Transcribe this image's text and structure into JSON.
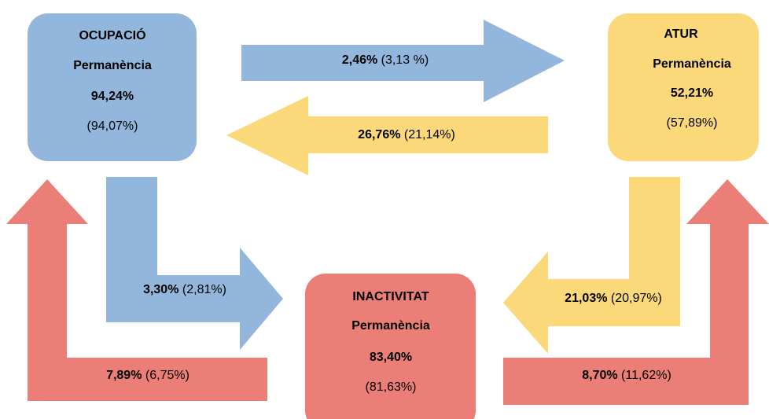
{
  "nodes": [
    {
      "name": "OCUPACIÓ",
      "label": "Permanència",
      "value": "94,24%",
      "previous": "(94,07%)"
    },
    {
      "name": "ATUR",
      "label": "Permanència",
      "value": "52,21%",
      "previous": "(57,89%)"
    },
    {
      "name": "INACTIVITAT",
      "label": "Permanència",
      "value": "83,40%",
      "previous": "(81,63%)"
    }
  ],
  "flows": [
    {
      "value": "2,46%",
      "previous": "(3,13 %)"
    },
    {
      "value": "26,76%",
      "previous": "(21,14%)"
    },
    {
      "value": "3,30%",
      "previous": "(2,81%)"
    },
    {
      "value": "7,89%",
      "previous": "(6,75%)"
    },
    {
      "value": "21,03%",
      "previous": "(20,97%)"
    },
    {
      "value": "8,70%",
      "previous": "(11,62%)"
    }
  ]
}
